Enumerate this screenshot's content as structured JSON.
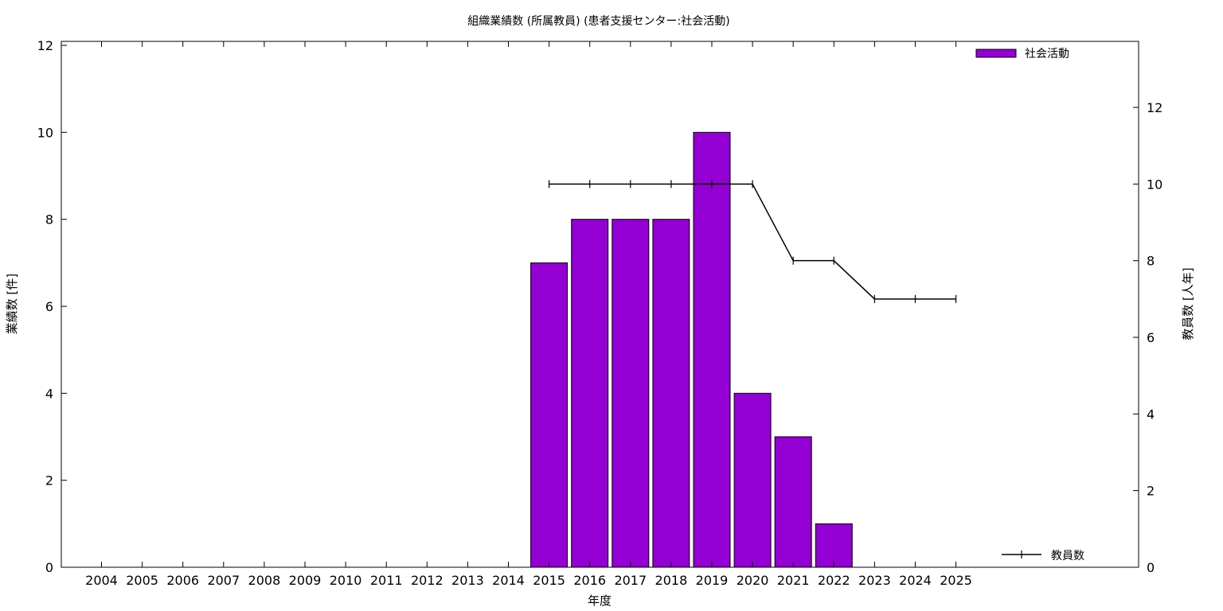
{
  "chart_data": {
    "type": "bar",
    "title": "組織業績数 (所属教員) (患者支援センター:社会活動)",
    "xlabel": "年度",
    "ylabel": "業績数 [件]",
    "y2label": "教員数 [人年]",
    "categories": [
      "2004",
      "2005",
      "2006",
      "2007",
      "2008",
      "2009",
      "2010",
      "2011",
      "2012",
      "2013",
      "2014",
      "2015",
      "2016",
      "2017",
      "2018",
      "2019",
      "2020",
      "2021",
      "2022",
      "2023",
      "2024",
      "2025"
    ],
    "ylim": [
      0,
      12
    ],
    "yticks": [
      "0",
      "2",
      "4",
      "6",
      "8",
      "10",
      "12"
    ],
    "y2lim": [
      0,
      12
    ],
    "y2ticks": [
      "0",
      "2",
      "4",
      "6",
      "8",
      "10",
      "12"
    ],
    "series": [
      {
        "name": "社会活動",
        "type": "bar",
        "axis": "left",
        "color": "#9400d3",
        "values": [
          null,
          null,
          null,
          null,
          null,
          null,
          null,
          null,
          null,
          null,
          null,
          7,
          8,
          8,
          8,
          10,
          4,
          3,
          1,
          null,
          null,
          null
        ]
      },
      {
        "name": "教員数",
        "type": "line",
        "axis": "right",
        "color": "#000000",
        "values": [
          null,
          null,
          null,
          null,
          null,
          null,
          null,
          null,
          null,
          null,
          null,
          10,
          10,
          10,
          10,
          10,
          10,
          8,
          8,
          7,
          7,
          7
        ]
      }
    ],
    "legend_position": "top-right (bars), bottom-right (line)",
    "grid": false
  }
}
